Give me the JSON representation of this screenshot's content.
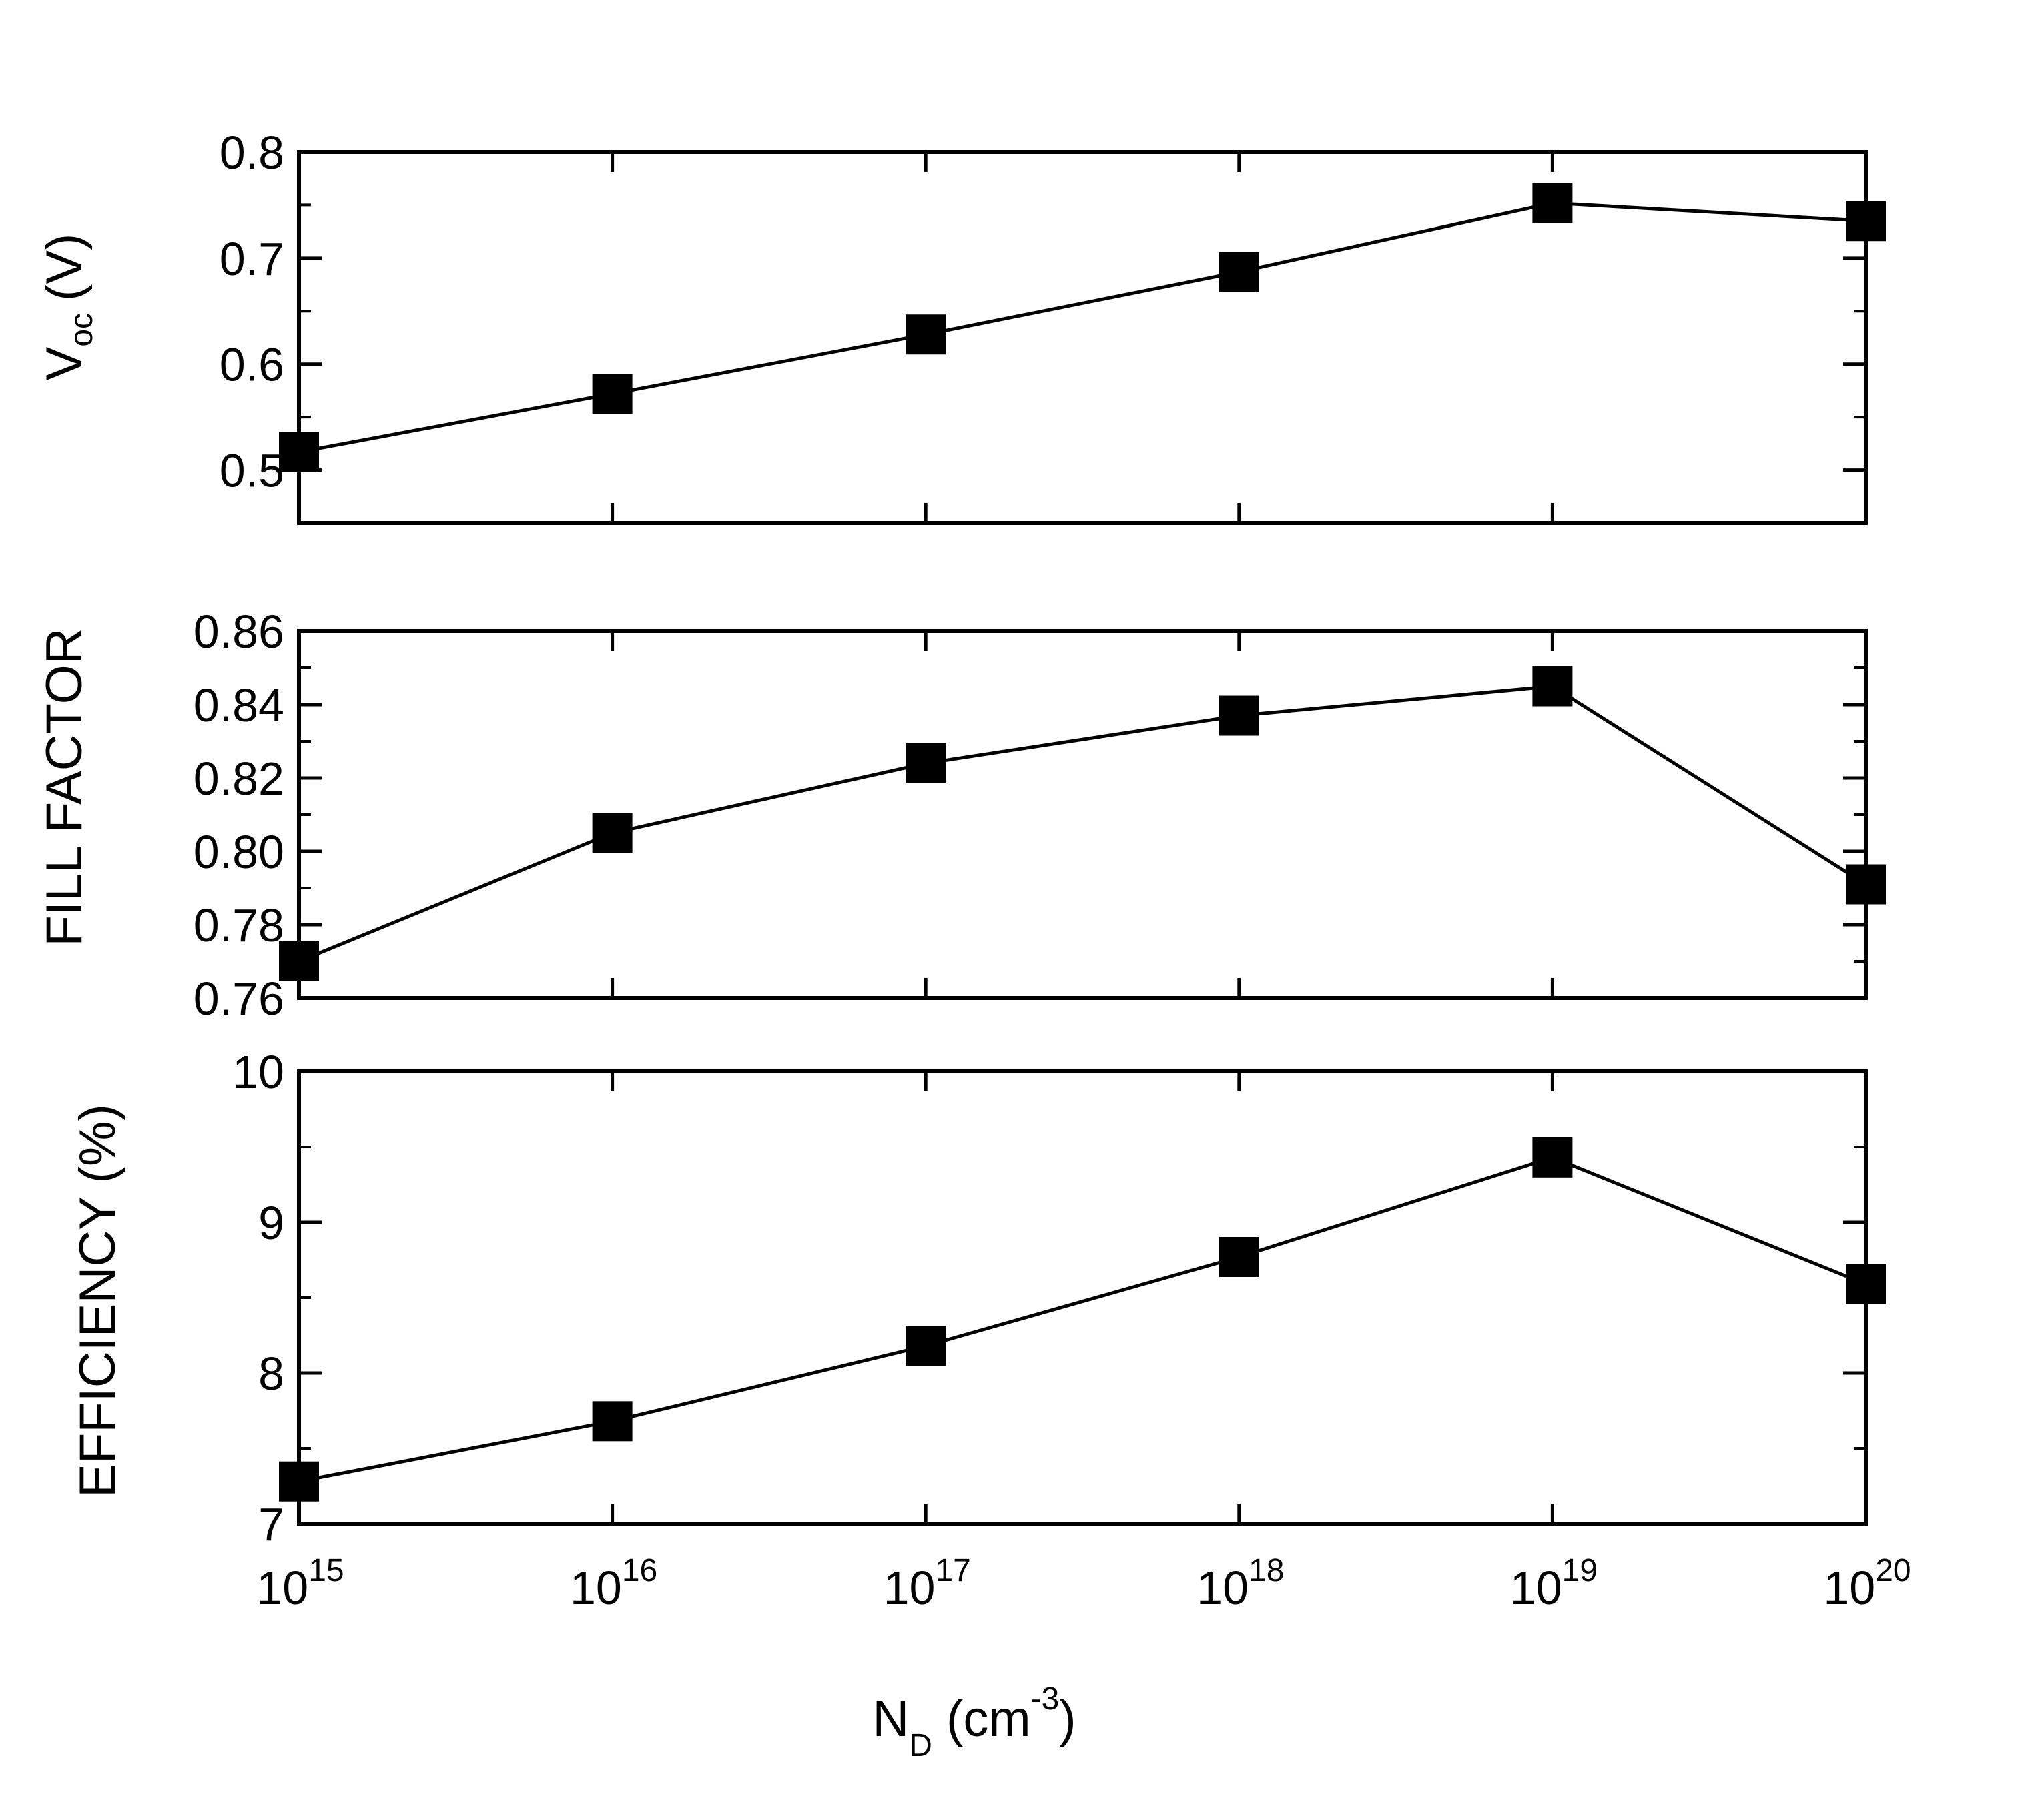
{
  "chart_data": [
    {
      "type": "line",
      "marker": "square",
      "title": "",
      "ylabel": "V",
      "ylabel_sub": "oc",
      "ylabel_unit": "(V)",
      "xscale": "log",
      "x": [
        1000000000000000.0,
        1e+16,
        1e+17,
        1e+18,
        1e+19,
        1e+20
      ],
      "series": [
        {
          "name": "Voc",
          "values": [
            0.517,
            0.572,
            0.628,
            0.687,
            0.752,
            0.735
          ]
        }
      ],
      "ylim": [
        0.45,
        0.8
      ],
      "yticks": [
        0.5,
        0.6,
        0.7,
        0.8
      ],
      "ytick_labels": [
        "0.5",
        "0.6",
        "0.7",
        "0.8"
      ],
      "yminor": [
        0.45,
        0.55,
        0.65,
        0.75
      ]
    },
    {
      "type": "line",
      "marker": "square",
      "title": "",
      "ylabel": "FILL FACTOR",
      "xscale": "log",
      "x": [
        1000000000000000.0,
        1e+16,
        1e+17,
        1e+18,
        1e+19,
        1e+20
      ],
      "series": [
        {
          "name": "Fill factor",
          "values": [
            0.77,
            0.805,
            0.824,
            0.837,
            0.845,
            0.791
          ]
        }
      ],
      "ylim": [
        0.76,
        0.86
      ],
      "yticks": [
        0.76,
        0.78,
        0.8,
        0.82,
        0.84,
        0.86
      ],
      "ytick_labels": [
        "0.76",
        "0.78",
        "0.80",
        "0.82",
        "0.84",
        "0.86"
      ],
      "yminor": [
        0.77,
        0.79,
        0.81,
        0.83,
        0.85
      ]
    },
    {
      "type": "line",
      "marker": "square",
      "title": "",
      "ylabel": "EFFICIENCY (%)",
      "xscale": "log",
      "x": [
        1000000000000000.0,
        1e+16,
        1e+17,
        1e+18,
        1e+19,
        1e+20
      ],
      "series": [
        {
          "name": "Efficiency",
          "values": [
            7.28,
            7.68,
            8.18,
            8.77,
            9.43,
            8.59
          ]
        }
      ],
      "ylim": [
        7,
        10
      ],
      "yticks": [
        7,
        8,
        9,
        10
      ],
      "ytick_labels": [
        "7",
        "8",
        "9",
        "10"
      ],
      "yminor": [
        7.5,
        8.5,
        9.5
      ],
      "xtick_bases": [
        "10",
        "10",
        "10",
        "10",
        "10",
        "10"
      ],
      "xtick_exponents": [
        "15",
        "16",
        "17",
        "18",
        "19",
        "20"
      ]
    }
  ],
  "xaxis": {
    "label": "N",
    "label_sub": "D",
    "label_unit_pre": " (cm",
    "label_unit_sup": "-3",
    "label_unit_post": ")",
    "xlim_log10": [
      15,
      20
    ]
  },
  "style": {
    "line_color": "#000000",
    "marker_color": "#000000",
    "background": "#ffffff"
  }
}
